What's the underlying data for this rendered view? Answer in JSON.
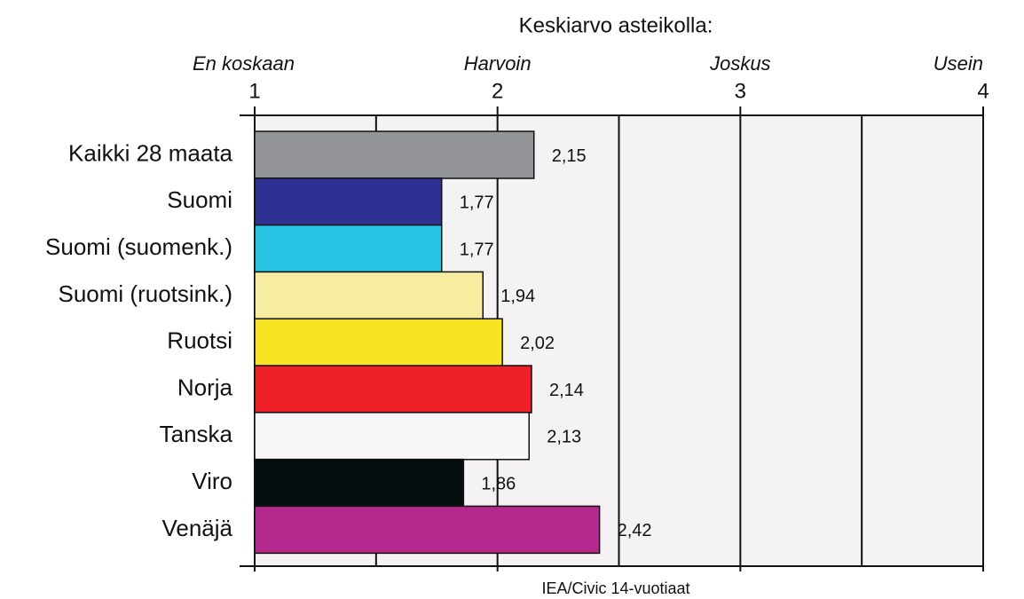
{
  "chart_data": {
    "type": "bar",
    "orientation": "horizontal",
    "title": "Keskiarvo asteikolla:",
    "source": "IEA/Civic 14-vuotiaat",
    "categories": [
      "Kaikki 28 maata",
      "Suomi",
      "Suomi (suomenk.)",
      "Suomi (ruotsink.)",
      "Ruotsi",
      "Norja",
      "Tanska",
      "Viro",
      "Venäjä"
    ],
    "values": [
      2.15,
      1.77,
      1.77,
      1.94,
      2.02,
      2.14,
      2.13,
      1.86,
      2.42
    ],
    "value_labels": [
      "2,15",
      "1,77",
      "1,77",
      "1,94",
      "2,02",
      "2,14",
      "2,13",
      "1,86",
      "2,42"
    ],
    "colors": [
      "#939598",
      "#2e3192",
      "#29c4e4",
      "#f7eda0",
      "#f7e322",
      "#ed2027",
      "#f8f8f8",
      "#050f0f",
      "#b5298e"
    ],
    "xlim": [
      1,
      4
    ],
    "xticks": [
      1,
      2,
      3,
      4
    ],
    "xtick_names": [
      "En koskaan",
      "Harvoin",
      "Joskus",
      "Usein"
    ],
    "minor_xticks": [
      1.5,
      2.5,
      3.5
    ],
    "grid": true
  }
}
